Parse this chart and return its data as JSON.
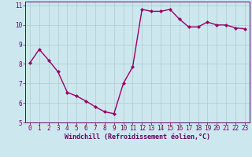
{
  "x": [
    0,
    1,
    2,
    3,
    4,
    5,
    6,
    7,
    8,
    9,
    10,
    11,
    12,
    13,
    14,
    15,
    16,
    17,
    18,
    19,
    20,
    21,
    22,
    23
  ],
  "y": [
    8.05,
    8.75,
    8.2,
    7.6,
    6.55,
    6.35,
    6.1,
    5.8,
    5.55,
    5.45,
    7.0,
    7.85,
    10.8,
    10.7,
    10.7,
    10.8,
    10.3,
    9.9,
    9.9,
    10.15,
    10.0,
    10.0,
    9.85,
    9.8
  ],
  "line_color": "#990066",
  "marker": "D",
  "marker_size": 2.0,
  "bg_color": "#cce8ee",
  "grid_color": "#aacccc",
  "xlabel": "Windchill (Refroidissement éolien,°C)",
  "ylabel": "",
  "xlim": [
    -0.5,
    23.5
  ],
  "ylim": [
    5,
    11.2
  ],
  "yticks": [
    5,
    6,
    7,
    8,
    9,
    10,
    11
  ],
  "xticks": [
    0,
    1,
    2,
    3,
    4,
    5,
    6,
    7,
    8,
    9,
    10,
    11,
    12,
    13,
    14,
    15,
    16,
    17,
    18,
    19,
    20,
    21,
    22,
    23
  ],
  "line_width": 1.0,
  "font_color": "#660066",
  "axis_label_fontsize": 6.0,
  "tick_fontsize": 5.5
}
